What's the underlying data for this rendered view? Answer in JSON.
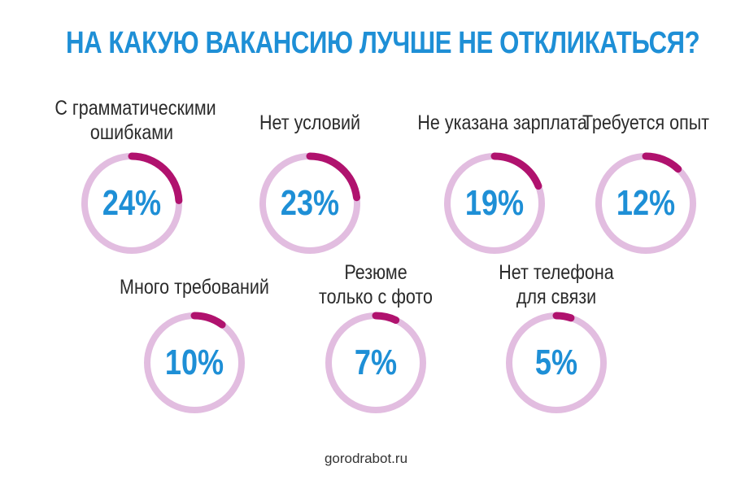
{
  "title": "НА КАКУЮ ВАКАНСИЮ ЛУЧШЕ НЕ ОТКЛИКАТЬСЯ?",
  "source": "gorodrabot.ru",
  "colors": {
    "title": "#1e8fd6",
    "percent_text": "#1e8fd6",
    "ring_track": "#e2bde0",
    "ring_value": "#b0126e",
    "label_text": "#2b2b2b"
  },
  "chart_data": {
    "type": "pie",
    "title": "НА КАКУЮ ВАКАНСИЮ ЛУЧШЕ НЕ ОТКЛИКАТЬСЯ?",
    "unit": "%",
    "items": [
      {
        "label_lines": [
          "С грамматическими",
          "ошибками"
        ],
        "value": 24,
        "display": "24%"
      },
      {
        "label_lines": [
          "Нет условий"
        ],
        "value": 23,
        "display": "23%"
      },
      {
        "label_lines": [
          "Не указана зарплата"
        ],
        "value": 19,
        "display": "19%"
      },
      {
        "label_lines": [
          "Требуется опыт"
        ],
        "value": 12,
        "display": "12%"
      },
      {
        "label_lines": [
          "Много требований"
        ],
        "value": 10,
        "display": "10%"
      },
      {
        "label_lines": [
          "Резюме",
          "только с фото"
        ],
        "value": 7,
        "display": "7%"
      },
      {
        "label_lines": [
          "Нет телефона",
          "для связи"
        ],
        "value": 5,
        "display": "5%"
      }
    ]
  }
}
